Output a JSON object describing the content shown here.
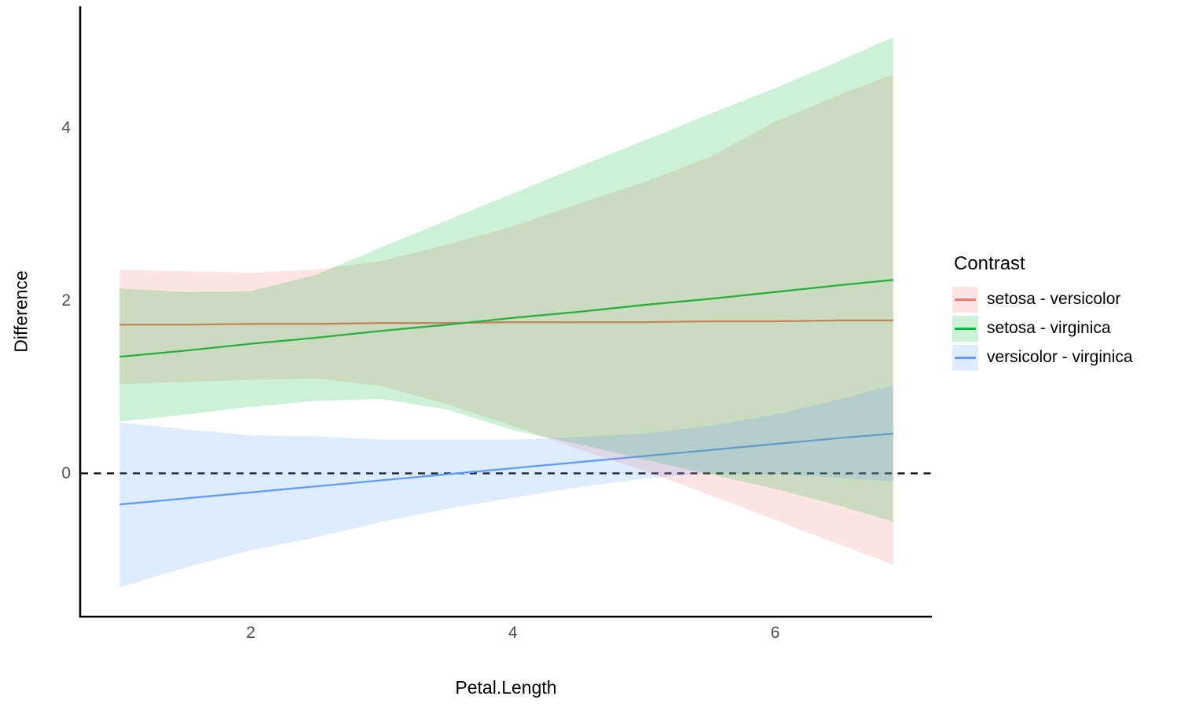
{
  "axes": {
    "x": {
      "title": "Petal.Length",
      "tick_labels": [
        "2",
        "4",
        "6"
      ],
      "tick_values": [
        2,
        4,
        6
      ],
      "domain": [
        0.705,
        7.195
      ]
    },
    "y": {
      "title": "Difference",
      "tick_labels": [
        "0",
        "2",
        "4"
      ],
      "tick_values": [
        0,
        2,
        4
      ],
      "domain": [
        -1.65,
        5.38
      ]
    }
  },
  "legend": {
    "title": "Contrast",
    "entries": [
      {
        "label": "setosa - versicolor",
        "color": "#F8766D"
      },
      {
        "label": "setosa - virginica",
        "color": "#00BA38"
      },
      {
        "label": "versicolor - virginica",
        "color": "#619CFF"
      }
    ]
  },
  "style": {
    "ribbon_opacity": 0.2,
    "axis_line_color": "#000000",
    "tick_text_color": "#4d4d4d",
    "reference_line_color": "#000000",
    "background": "#ffffff"
  },
  "chart_data": {
    "type": "line",
    "subtype": "lines-with-confidence-ribbons",
    "title": "",
    "xlabel": "Petal.Length",
    "ylabel": "Difference",
    "xlim": [
      0.705,
      7.195
    ],
    "ylim": [
      -1.65,
      5.38
    ],
    "grid": false,
    "legend_position": "right",
    "reference_line": {
      "y": 0,
      "style": "dashed",
      "color": "#000000"
    },
    "x": [
      1.0,
      1.5,
      2.0,
      2.5,
      3.0,
      3.5,
      4.0,
      4.5,
      5.0,
      5.5,
      6.0,
      6.5,
      6.9
    ],
    "series": [
      {
        "name": "setosa - versicolor",
        "color": "#F8766D",
        "line": [
          1.72,
          1.72,
          1.73,
          1.73,
          1.74,
          1.74,
          1.75,
          1.75,
          1.75,
          1.76,
          1.76,
          1.77,
          1.77
        ],
        "upper": [
          2.36,
          2.34,
          2.32,
          2.36,
          2.46,
          2.65,
          2.86,
          3.12,
          3.37,
          3.66,
          4.07,
          4.39,
          4.62
        ],
        "lower": [
          1.03,
          1.06,
          1.08,
          1.1,
          1.01,
          0.8,
          0.55,
          0.28,
          0.03,
          -0.25,
          -0.54,
          -0.83,
          -1.06
        ]
      },
      {
        "name": "setosa - virginica",
        "color": "#00BA38",
        "line": [
          1.35,
          1.42,
          1.5,
          1.57,
          1.65,
          1.72,
          1.8,
          1.87,
          1.95,
          2.02,
          2.1,
          2.18,
          2.24
        ],
        "upper": [
          2.14,
          2.1,
          2.11,
          2.3,
          2.62,
          2.93,
          3.24,
          3.55,
          3.85,
          4.16,
          4.46,
          4.78,
          5.05
        ],
        "lower": [
          0.6,
          0.68,
          0.77,
          0.84,
          0.86,
          0.74,
          0.5,
          0.34,
          0.16,
          -0.01,
          -0.18,
          -0.38,
          -0.56
        ]
      },
      {
        "name": "versicolor - virginica",
        "color": "#619CFF",
        "line": [
          -0.36,
          -0.29,
          -0.22,
          -0.15,
          -0.08,
          -0.01,
          0.06,
          0.13,
          0.2,
          0.27,
          0.34,
          0.41,
          0.46
        ],
        "upper": [
          0.59,
          0.51,
          0.44,
          0.43,
          0.39,
          0.39,
          0.39,
          0.42,
          0.46,
          0.55,
          0.68,
          0.86,
          1.02
        ],
        "lower": [
          -1.32,
          -1.09,
          -0.89,
          -0.74,
          -0.56,
          -0.41,
          -0.28,
          -0.16,
          -0.06,
          0.0,
          -0.01,
          -0.05,
          -0.09
        ]
      }
    ]
  }
}
